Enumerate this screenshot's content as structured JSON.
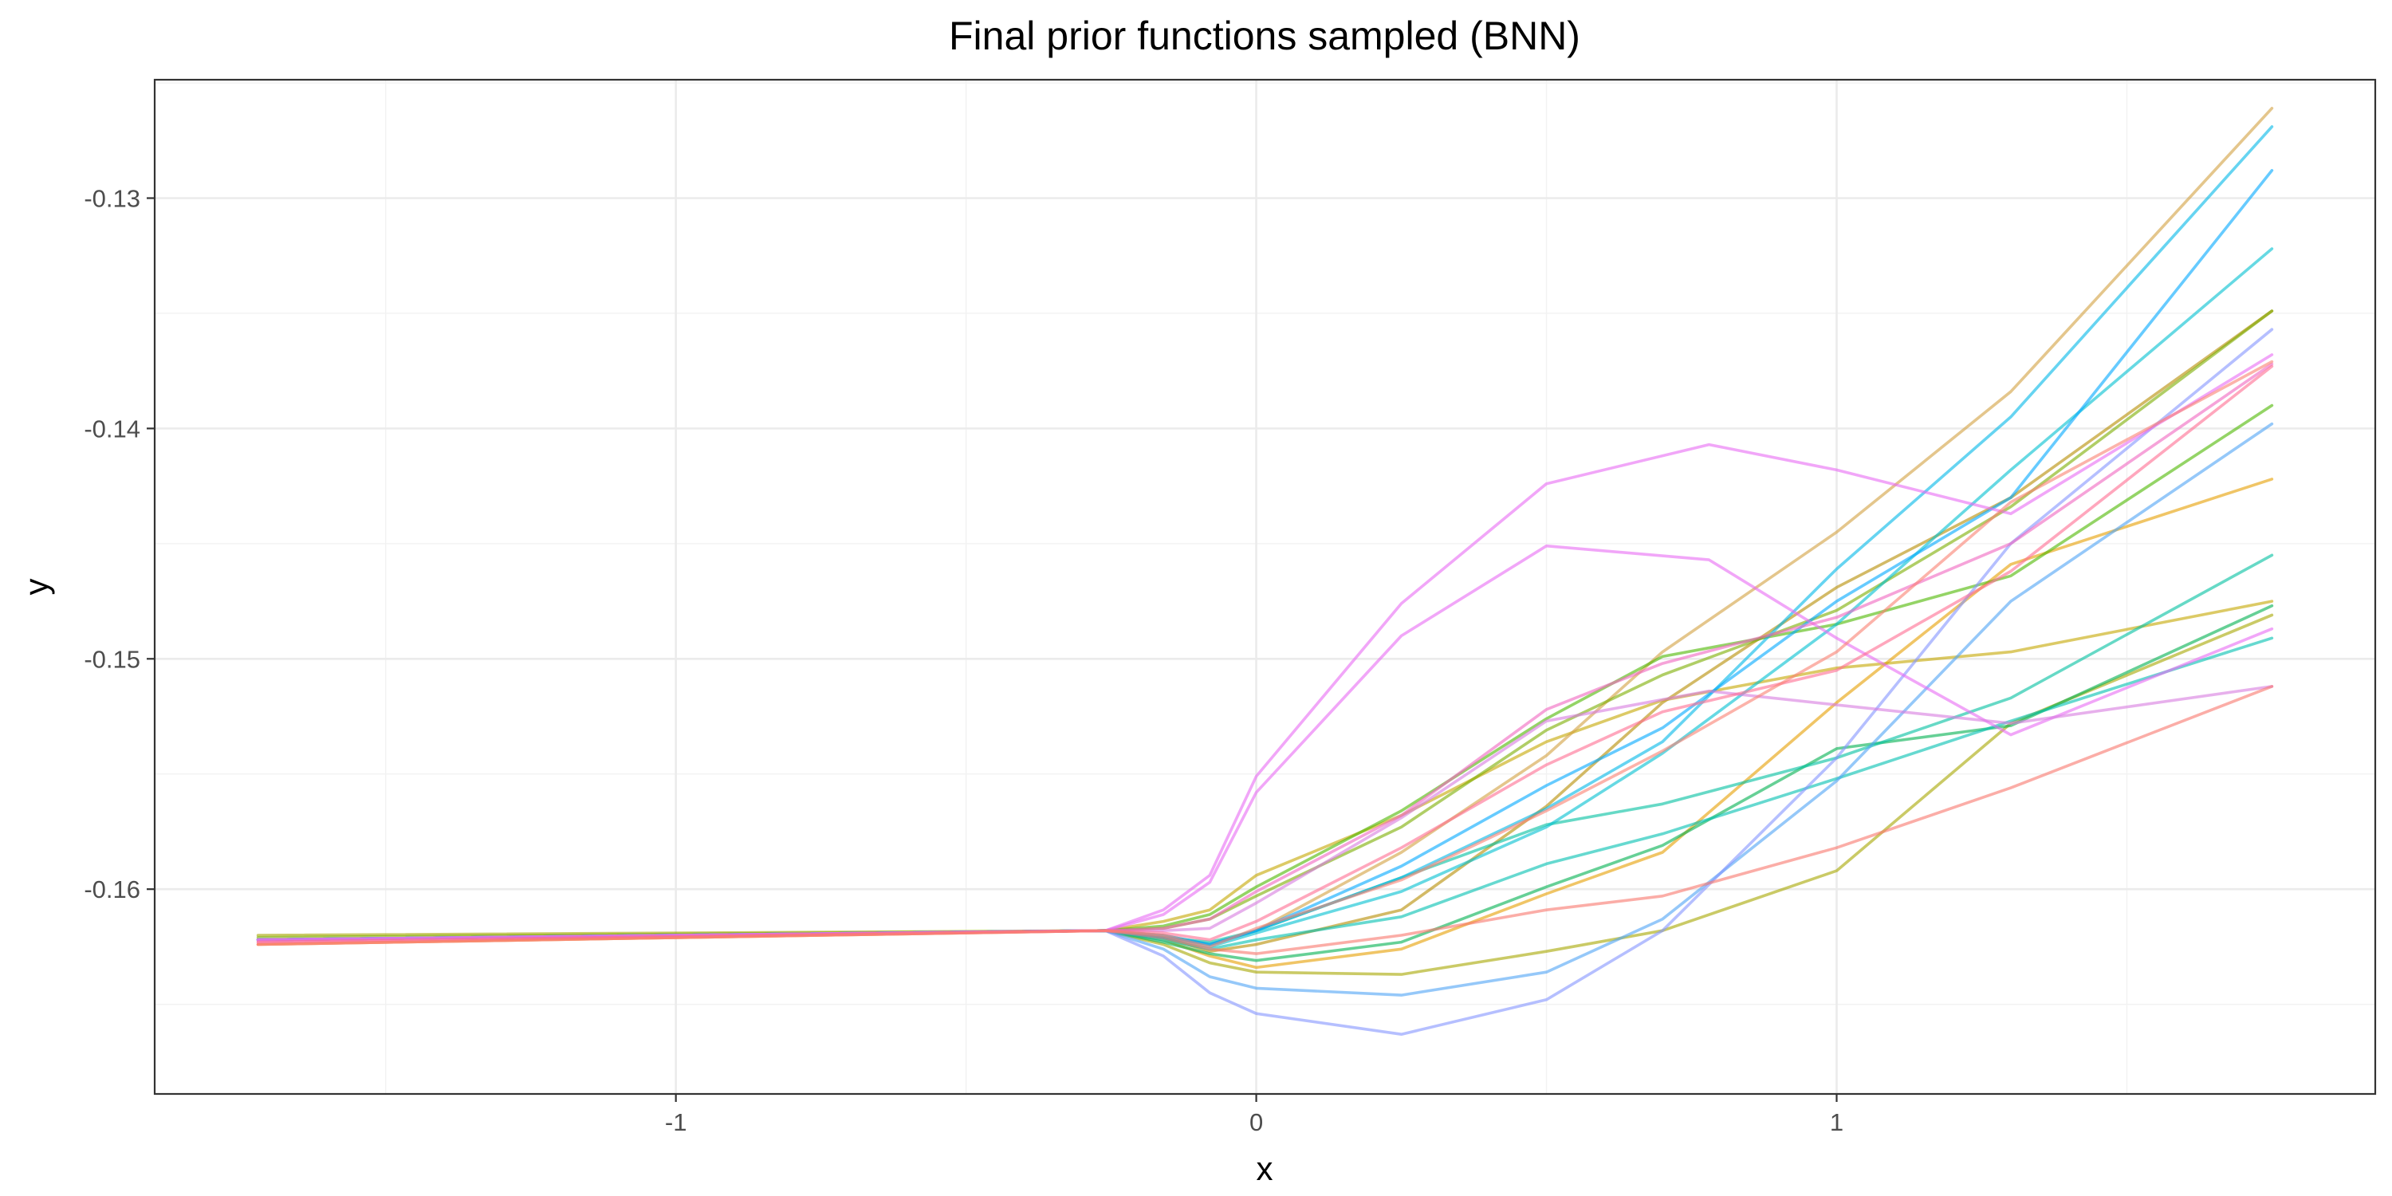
{
  "chart_data": {
    "type": "line",
    "title": "Final prior functions sampled (BNN)",
    "xlabel": "x",
    "ylabel": "y",
    "xlim": [
      -1.898,
      1.928
    ],
    "ylim": [
      -0.16889,
      -0.12486
    ],
    "x_ticks": [
      -1,
      0,
      1
    ],
    "x_tick_labels": [
      "-1",
      "0",
      "1"
    ],
    "y_ticks": [
      -0.16,
      -0.15,
      -0.14,
      -0.13
    ],
    "y_tick_labels": [
      "-0.16",
      "-0.15",
      "-0.14",
      "-0.13"
    ],
    "grid": true,
    "legend": "none",
    "series": [
      {
        "color": "#E69F00",
        "x": [
          -1.72,
          -0.26,
          -0.16,
          -0.08,
          0.0,
          0.25,
          0.5,
          0.7,
          1.0,
          1.3,
          1.75
        ],
        "y": [
          -0.1624,
          -0.1618,
          -0.1622,
          -0.1629,
          -0.1634,
          -0.1626,
          -0.1602,
          -0.1584,
          -0.1519,
          -0.1459,
          -0.1422
        ]
      },
      {
        "color": "#B58C00",
        "x": [
          -1.72,
          -0.26,
          -0.16,
          -0.08,
          0.0,
          0.25,
          0.5,
          0.7,
          1.0,
          1.3,
          1.75
        ],
        "y": [
          -0.1622,
          -0.1618,
          -0.1621,
          -0.1627,
          -0.1624,
          -0.1609,
          -0.1564,
          -0.1519,
          -0.1469,
          -0.143,
          -0.1349
        ]
      },
      {
        "color": "#A6A600",
        "x": [
          -1.72,
          -0.26,
          -0.16,
          -0.08,
          0.0,
          0.25,
          0.5,
          0.7,
          1.0,
          1.3,
          1.75
        ],
        "y": [
          -0.162,
          -0.1618,
          -0.1624,
          -0.1632,
          -0.1636,
          -0.1637,
          -0.1627,
          -0.1618,
          -0.1592,
          -0.1528,
          -0.1481
        ]
      },
      {
        "color": "#C5A600",
        "x": [
          -1.72,
          -0.26,
          -0.16,
          -0.08,
          0.0,
          0.25,
          0.5,
          0.7,
          1.0,
          1.3,
          1.75
        ],
        "y": [
          -0.1622,
          -0.1618,
          -0.1614,
          -0.1609,
          -0.1594,
          -0.1568,
          -0.1536,
          -0.1518,
          -0.1504,
          -0.1497,
          -0.1475
        ]
      },
      {
        "color": "#D2A040",
        "x": [
          -1.72,
          -0.26,
          -0.16,
          -0.08,
          0.0,
          0.25,
          0.5,
          0.7,
          1.0,
          1.3,
          1.75
        ],
        "y": [
          -0.1622,
          -0.1618,
          -0.162,
          -0.1624,
          -0.1618,
          -0.1584,
          -0.1542,
          -0.1497,
          -0.1445,
          -0.1384,
          -0.1261
        ]
      },
      {
        "color": "#7CAE00",
        "x": [
          -1.72,
          -0.26,
          -0.16,
          -0.08,
          0.0,
          0.25,
          0.5,
          0.7,
          1.0,
          1.3,
          1.75
        ],
        "y": [
          -0.1621,
          -0.1618,
          -0.1617,
          -0.1613,
          -0.1603,
          -0.1573,
          -0.1531,
          -0.1507,
          -0.1479,
          -0.1434,
          -0.1349
        ]
      },
      {
        "color": "#4DB800",
        "x": [
          -1.72,
          -0.26,
          -0.16,
          -0.08,
          0.0,
          0.25,
          0.5,
          0.7,
          1.0,
          1.3,
          1.75
        ],
        "y": [
          -0.1622,
          -0.1618,
          -0.1616,
          -0.1611,
          -0.1599,
          -0.1566,
          -0.1526,
          -0.1499,
          -0.1485,
          -0.1464,
          -0.139
        ]
      },
      {
        "color": "#00B050",
        "x": [
          -1.72,
          -0.26,
          -0.16,
          -0.08,
          0.0,
          0.25,
          0.5,
          0.7,
          1.0,
          1.3,
          1.75
        ],
        "y": [
          -0.1622,
          -0.1618,
          -0.1623,
          -0.1628,
          -0.1631,
          -0.1623,
          -0.1599,
          -0.1581,
          -0.1539,
          -0.1529,
          -0.1477
        ]
      },
      {
        "color": "#00BFA0",
        "x": [
          -1.72,
          -0.26,
          -0.16,
          -0.08,
          0.0,
          0.25,
          0.5,
          0.7,
          1.0,
          1.3,
          1.75
        ],
        "y": [
          -0.1622,
          -0.1618,
          -0.1621,
          -0.1623,
          -0.1618,
          -0.1595,
          -0.1572,
          -0.1563,
          -0.1543,
          -0.1517,
          -0.1455
        ]
      },
      {
        "color": "#00C0B0",
        "x": [
          -1.72,
          -0.26,
          -0.16,
          -0.08,
          0.0,
          0.25,
          0.5,
          0.7,
          1.0,
          1.3,
          1.75
        ],
        "y": [
          -0.1622,
          -0.1618,
          -0.1622,
          -0.1626,
          -0.1622,
          -0.1612,
          -0.1589,
          -0.1576,
          -0.1552,
          -0.1527,
          -0.1491
        ]
      },
      {
        "color": "#00C0D0",
        "x": [
          -1.72,
          -0.26,
          -0.16,
          -0.08,
          0.0,
          0.25,
          0.5,
          0.7,
          1.0,
          1.3,
          1.75
        ],
        "y": [
          -0.1622,
          -0.1618,
          -0.1621,
          -0.1625,
          -0.1619,
          -0.1601,
          -0.1573,
          -0.1541,
          -0.1485,
          -0.1418,
          -0.1322
        ]
      },
      {
        "color": "#00B8E7",
        "x": [
          -1.72,
          -0.26,
          -0.16,
          -0.08,
          0.0,
          0.25,
          0.5,
          0.7,
          1.0,
          1.3,
          1.75
        ],
        "y": [
          -0.1622,
          -0.1618,
          -0.1621,
          -0.1624,
          -0.1618,
          -0.1595,
          -0.1565,
          -0.1536,
          -0.1461,
          -0.1395,
          -0.1269
        ]
      },
      {
        "color": "#00A9FF",
        "x": [
          -1.72,
          -0.26,
          -0.16,
          -0.08,
          0.0,
          0.25,
          0.5,
          0.7,
          1.0,
          1.3,
          1.75
        ],
        "y": [
          -0.1622,
          -0.1618,
          -0.162,
          -0.1624,
          -0.1618,
          -0.159,
          -0.1555,
          -0.153,
          -0.1475,
          -0.143,
          -0.1288
        ]
      },
      {
        "color": "#4FA3F5",
        "x": [
          -1.72,
          -0.26,
          -0.16,
          -0.08,
          0.0,
          0.25,
          0.5,
          0.7,
          1.0,
          1.3,
          1.75
        ],
        "y": [
          -0.1622,
          -0.1618,
          -0.1626,
          -0.1638,
          -0.1643,
          -0.1646,
          -0.1636,
          -0.1613,
          -0.1553,
          -0.1475,
          -0.1398
        ]
      },
      {
        "color": "#8494FF",
        "x": [
          -1.72,
          -0.26,
          -0.16,
          -0.08,
          0.0,
          0.25,
          0.5,
          0.7,
          1.0,
          1.3,
          1.75
        ],
        "y": [
          -0.1622,
          -0.1618,
          -0.1629,
          -0.1645,
          -0.1654,
          -0.1663,
          -0.1648,
          -0.1618,
          -0.1543,
          -0.145,
          -0.1357
        ]
      },
      {
        "color": "#E76BF3",
        "x": [
          -1.72,
          -0.26,
          -0.16,
          -0.08,
          0.0,
          0.25,
          0.5,
          0.78,
          1.0,
          1.3,
          1.75
        ],
        "y": [
          -0.1622,
          -0.1618,
          -0.1609,
          -0.1594,
          -0.1551,
          -0.1476,
          -0.1424,
          -0.1407,
          -0.1418,
          -0.1437,
          -0.1368
        ]
      },
      {
        "color": "#E76BF3",
        "x": [
          -1.72,
          -0.26,
          -0.16,
          -0.08,
          0.0,
          0.25,
          0.5,
          0.78,
          1.0,
          1.3,
          1.75
        ],
        "y": [
          -0.1622,
          -0.1618,
          -0.1611,
          -0.1597,
          -0.1558,
          -0.149,
          -0.1451,
          -0.1457,
          -0.1491,
          -0.1533,
          -0.1487
        ]
      },
      {
        "color": "#D77BE0",
        "x": [
          -1.72,
          -0.26,
          -0.16,
          -0.08,
          0.0,
          0.25,
          0.5,
          0.78,
          1.0,
          1.3,
          1.75
        ],
        "y": [
          -0.1622,
          -0.1618,
          -0.1618,
          -0.1617,
          -0.1606,
          -0.1569,
          -0.1527,
          -0.1514,
          -0.152,
          -0.1528,
          -0.1512
        ]
      },
      {
        "color": "#F066C0",
        "x": [
          -1.72,
          -0.26,
          -0.16,
          -0.08,
          0.0,
          0.25,
          0.5,
          0.7,
          1.0,
          1.3,
          1.75
        ],
        "y": [
          -0.1623,
          -0.1618,
          -0.1617,
          -0.1613,
          -0.1601,
          -0.1568,
          -0.1522,
          -0.1502,
          -0.1482,
          -0.145,
          -0.1372
        ]
      },
      {
        "color": "#FF6C91",
        "x": [
          -1.72,
          -0.26,
          -0.16,
          -0.08,
          0.0,
          0.25,
          0.5,
          0.7,
          1.0,
          1.3,
          1.75
        ],
        "y": [
          -0.1623,
          -0.1618,
          -0.1619,
          -0.1622,
          -0.1614,
          -0.1582,
          -0.1546,
          -0.1523,
          -0.1505,
          -0.1462,
          -0.1373
        ]
      },
      {
        "color": "#F8766D",
        "x": [
          -1.72,
          -0.26,
          -0.16,
          -0.08,
          0.0,
          0.25,
          0.5,
          0.7,
          1.0,
          1.3,
          1.75
        ],
        "y": [
          -0.1624,
          -0.1618,
          -0.1621,
          -0.1626,
          -0.1628,
          -0.162,
          -0.1609,
          -0.1603,
          -0.1582,
          -0.1556,
          -0.1512
        ]
      },
      {
        "color": "#FA8072",
        "x": [
          -1.72,
          -0.26,
          -0.16,
          -0.08,
          0.0,
          0.25,
          0.5,
          0.7,
          1.0,
          1.3,
          1.75
        ],
        "y": [
          -0.1624,
          -0.1618,
          -0.162,
          -0.1625,
          -0.1617,
          -0.1596,
          -0.1566,
          -0.154,
          -0.1497,
          -0.1432,
          -0.1371
        ]
      }
    ]
  }
}
